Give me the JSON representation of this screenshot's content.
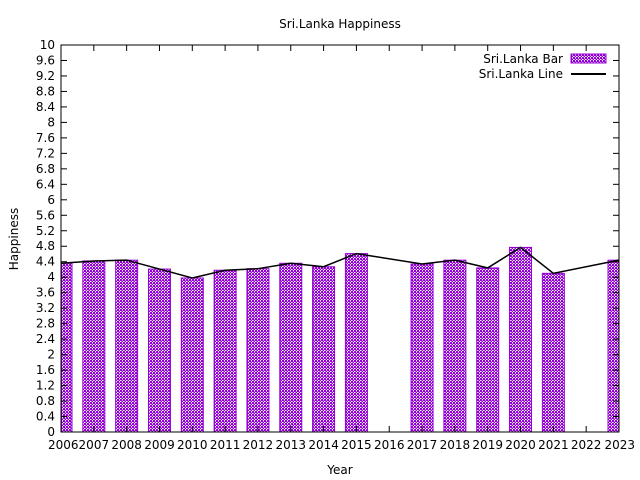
{
  "chart_data": {
    "type": "bar",
    "title": "Sri.Lanka Happiness",
    "xlabel": "Year",
    "ylabel": "Happiness",
    "ylim": [
      0,
      10
    ],
    "y_ticks": [
      "0",
      "0.4",
      "0.8",
      "1.2",
      "1.6",
      "2",
      "2.4",
      "2.8",
      "3.2",
      "3.6",
      "4",
      "4.4",
      "4.8",
      "5.2",
      "5.6",
      "6",
      "6.4",
      "6.8",
      "7.2",
      "7.6",
      "8",
      "8.4",
      "8.8",
      "9.2",
      "9.6",
      "10"
    ],
    "categories": [
      "2006",
      "2007",
      "2008",
      "2009",
      "2010",
      "2011",
      "2012",
      "2013",
      "2014",
      "2015",
      "2016",
      "2017",
      "2018",
      "2019",
      "2020",
      "2021",
      "2022",
      "2023"
    ],
    "grid": false,
    "legend_position": "top-right",
    "series": [
      {
        "name": "Sri.Lanka Bar",
        "type": "bar",
        "color": "#9400d3",
        "values": [
          4.36,
          4.42,
          4.44,
          4.21,
          3.98,
          4.18,
          4.22,
          4.36,
          4.27,
          4.61,
          null,
          4.34,
          4.44,
          4.24,
          4.77,
          4.1,
          null,
          4.44
        ]
      },
      {
        "name": "Sri.Lanka Line",
        "type": "line",
        "color": "#000000",
        "x": [
          "2006",
          "2007",
          "2008",
          "2009",
          "2010",
          "2011",
          "2012",
          "2013",
          "2014",
          "2015",
          "2017",
          "2018",
          "2019",
          "2020",
          "2021",
          "2023"
        ],
        "values": [
          4.36,
          4.42,
          4.44,
          4.21,
          3.98,
          4.18,
          4.22,
          4.36,
          4.27,
          4.61,
          4.34,
          4.44,
          4.24,
          4.77,
          4.1,
          4.44
        ]
      }
    ]
  }
}
